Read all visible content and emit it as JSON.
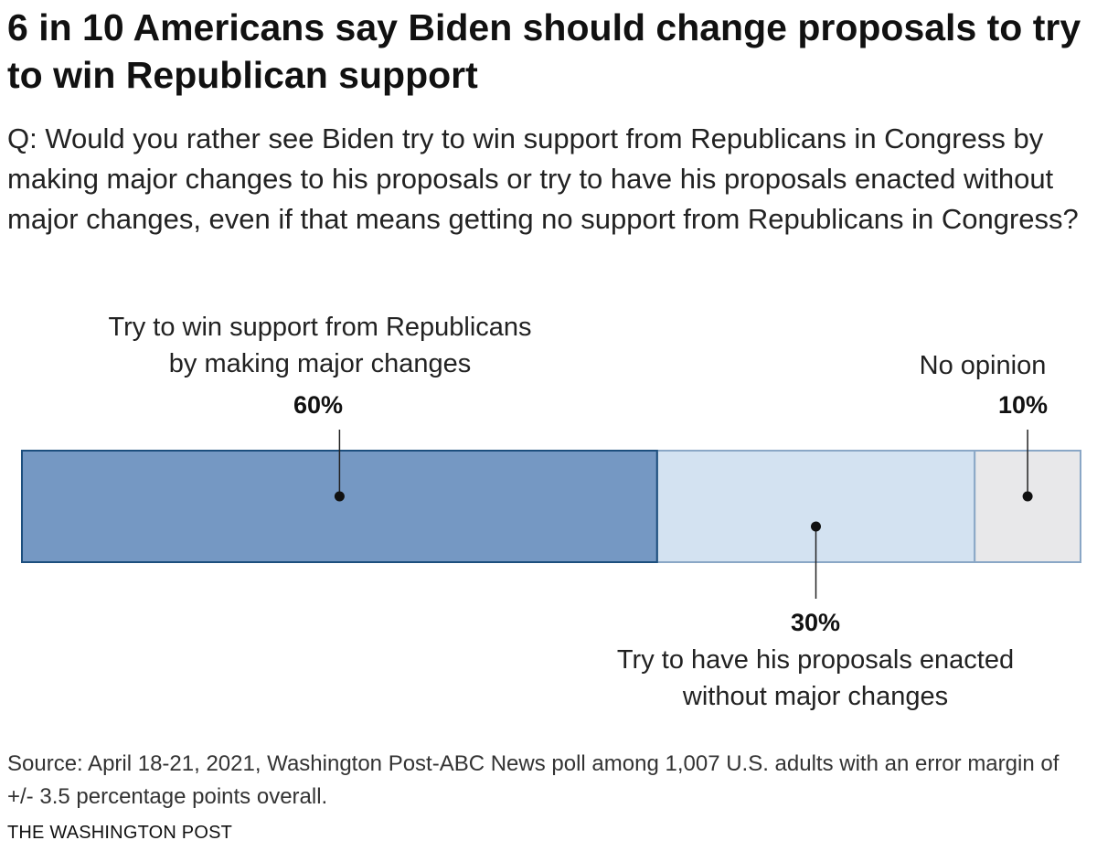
{
  "header": {
    "title": "6 in 10 Americans say Biden should change proposals to try to win Republican support",
    "question": "Q: Would you rather see Biden try to win support from Republicans in Congress by making major changes to his proposals or try to have his proposals enacted without major changes, even if that means getting no support from Republicans in Congress?"
  },
  "chart_data": {
    "type": "bar",
    "orientation": "horizontal-stacked",
    "categories": [
      "Try to win support from Republicans by making major changes",
      "Try to have his proposals enacted without major changes",
      "No opinion"
    ],
    "values": [
      60,
      30,
      10
    ],
    "value_labels": [
      "60%",
      "30%",
      "10%"
    ],
    "colors": [
      "#7598c3",
      "#d3e2f1",
      "#e8e8ea"
    ],
    "border_colors": [
      "#1d4f7e",
      "#8aa7c6",
      "#8aa7c6"
    ],
    "xlim": [
      0,
      100
    ]
  },
  "labels": {
    "seg1_line1": "Try to win support from Republicans",
    "seg1_line2": "by making major changes",
    "seg2_line1": "Try to have his proposals enacted",
    "seg2_line2": "without major changes",
    "seg3": "No opinion"
  },
  "footer": {
    "source": "Source: April 18-21, 2021, Washington Post-ABC News poll among 1,007 U.S. adults with an error margin of +/- 3.5 percentage points overall.",
    "credit": "THE WASHINGTON POST"
  }
}
